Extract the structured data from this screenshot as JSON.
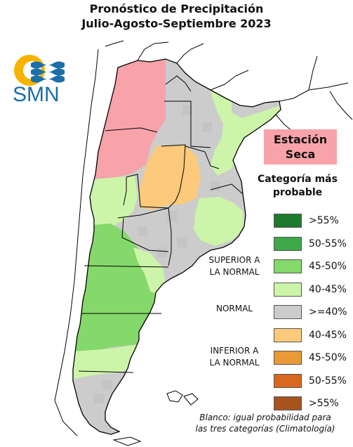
{
  "title": {
    "line1": "Pronóstico de Precipitación",
    "line2": "Julio-Agosto-Septiembre 2023"
  },
  "logo": {
    "text": "SMN",
    "icon": "smn-sun-waves-logo"
  },
  "season": {
    "line1": "Estación",
    "line2": "Seca"
  },
  "legend": {
    "title_line1": "Categoría más",
    "title_line2": "probable",
    "items": [
      {
        "label": ">55%",
        "color": "#1f7a2e"
      },
      {
        "label": "50-55%",
        "color": "#3ea84a"
      },
      {
        "label": "45-50%",
        "color": "#85d86a"
      },
      {
        "label": "40-45%",
        "color": "#cdf5a9"
      },
      {
        "label": ">=40%",
        "color": "#cccccc"
      },
      {
        "label": "40-45%",
        "color": "#fdc97a"
      },
      {
        "label": "45-50%",
        "color": "#e99a37"
      },
      {
        "label": "50-55%",
        "color": "#d8671f"
      },
      {
        "label": ">55%",
        "color": "#a8531e"
      }
    ],
    "groups": {
      "superior_line1": "SUPERIOR A",
      "superior_line2": "LA NORMAL",
      "normal": "NORMAL",
      "inferior_line1": "INFERIOR A",
      "inferior_line2": "LA NORMAL"
    }
  },
  "note": {
    "line1": "Blanco: igual probabilidad para",
    "line2": "las tres categorías (Climatología)"
  },
  "map_colors": {
    "dry_season": "#f7a3a9",
    "above_40_45": "#cdf5a9",
    "above_45_50": "#85d86a",
    "normal": "#cccccc",
    "below_40_45": "#fdc97a",
    "ocean": "#ffffff"
  }
}
